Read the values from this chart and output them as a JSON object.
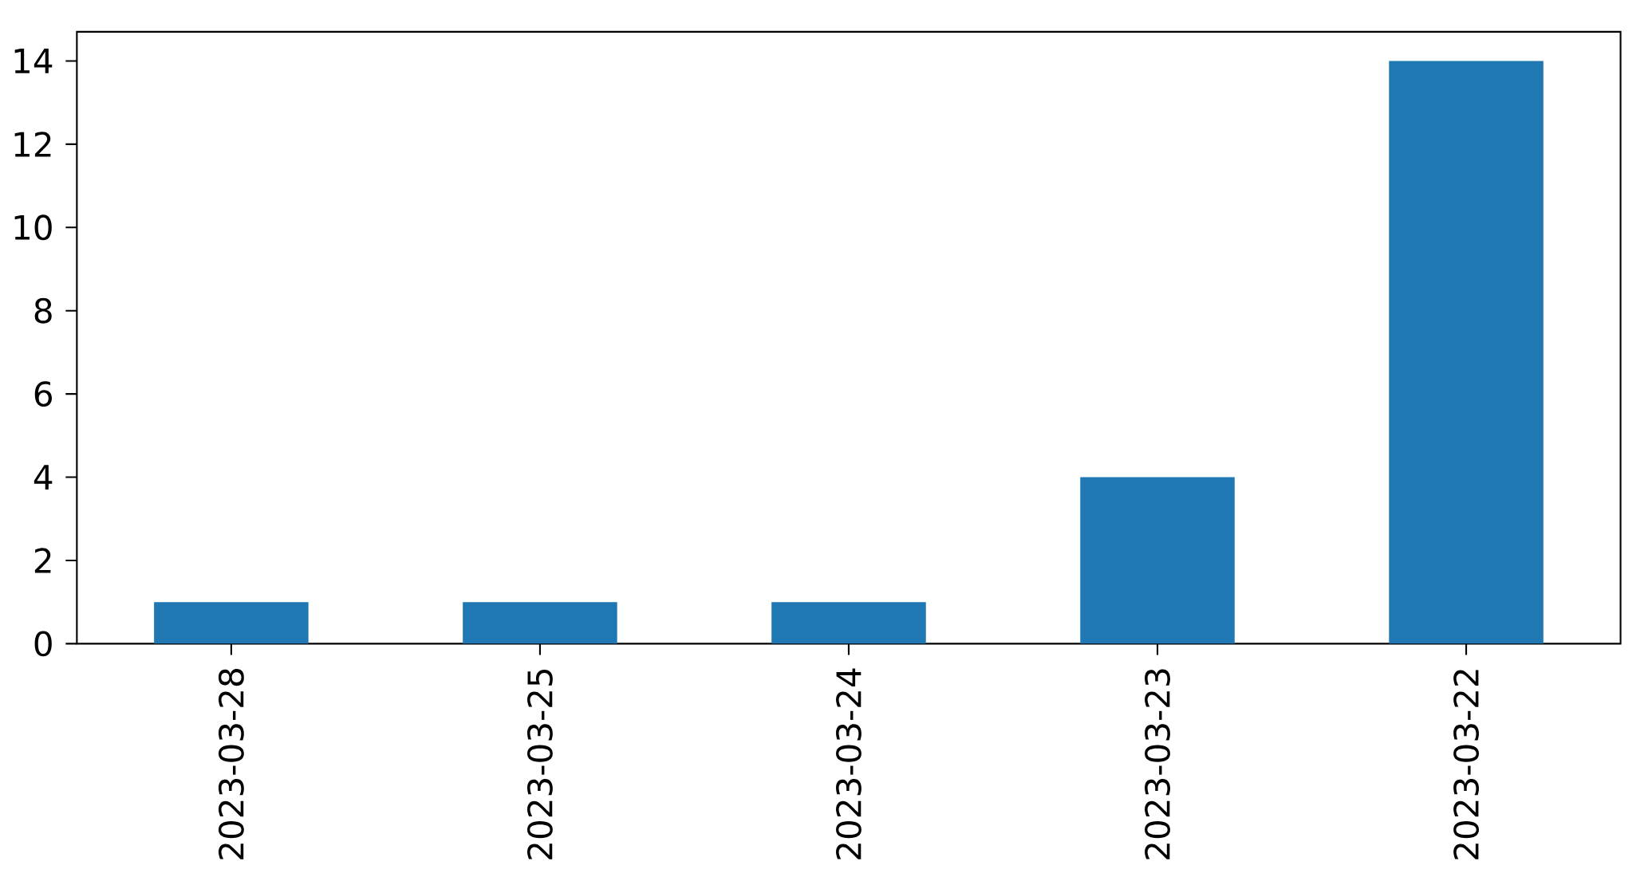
{
  "chart_data": {
    "type": "bar",
    "categories": [
      "2023-03-28",
      "2023-03-25",
      "2023-03-24",
      "2023-03-23",
      "2023-03-22"
    ],
    "values": [
      1,
      1,
      1,
      4,
      14
    ],
    "color": "#1f77b4",
    "ylim": [
      0,
      14.7
    ],
    "yticks": [
      0,
      2,
      4,
      6,
      8,
      10,
      12,
      14
    ],
    "grid": false
  }
}
